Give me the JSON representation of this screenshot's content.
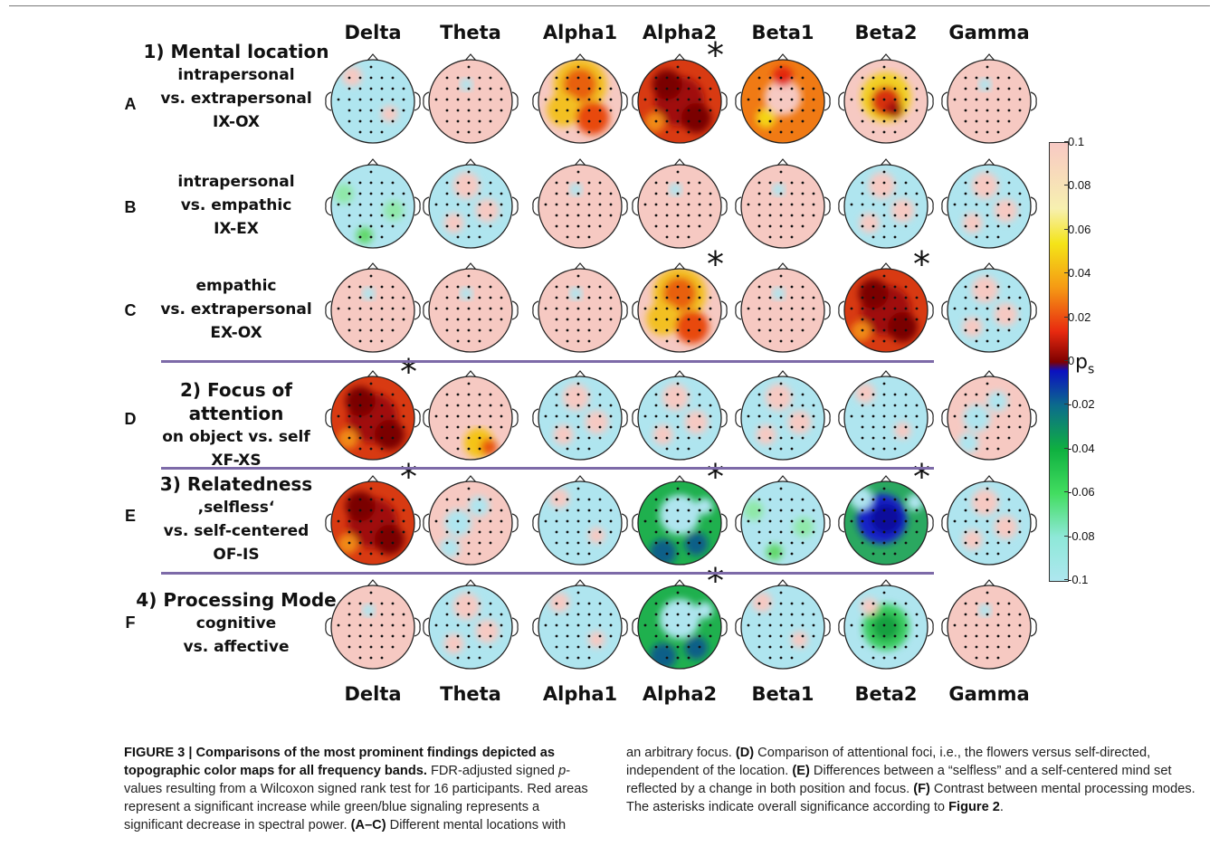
{
  "bands": [
    "Delta",
    "Theta",
    "Alpha1",
    "Alpha2",
    "Beta1",
    "Beta2",
    "Gamma"
  ],
  "rows": [
    {
      "letter": "A",
      "heading": "1) Mental location",
      "lines": [
        "intrapersonal",
        "vs. extrapersonal",
        "IX-OX"
      ],
      "asterisk_band": "Alpha2",
      "maps": [
        "blue",
        "pink",
        "hot-mid",
        "hot-strong",
        "hot-ring",
        "hot-center",
        "pink"
      ]
    },
    {
      "letter": "B",
      "heading": "",
      "lines": [
        "intrapersonal",
        "vs. empathic",
        "IX-EX"
      ],
      "asterisk_band": "",
      "maps": [
        "blue-green",
        "mixed-blue",
        "pink",
        "pink",
        "pink",
        "mixed-blue",
        "mixed-blue"
      ]
    },
    {
      "letter": "C",
      "heading": "",
      "lines": [
        "empathic",
        "vs. extrapersonal",
        "EX-OX"
      ],
      "asterisk_band": "Alpha2 Beta2",
      "maps": [
        "pink",
        "pink",
        "pink",
        "hot-mid",
        "pink",
        "hot-strong",
        "mixed-blue"
      ]
    },
    {
      "letter": "D",
      "heading": "2) Focus of attention",
      "lines": [
        "on object vs. self",
        "XF-XS"
      ],
      "asterisk_band": "Delta",
      "maps": [
        "hot-strong",
        "pink-hot",
        "mixed-blue",
        "mixed-blue",
        "mixed-blue",
        "blue",
        "mixed-pink"
      ]
    },
    {
      "letter": "E",
      "heading": "3) Relatedness",
      "lines": [
        ",selfless‘",
        "vs. self-centered",
        "OF-IS"
      ],
      "asterisk_band": "Delta Alpha2 Beta2",
      "maps": [
        "hot-strong",
        "mixed-pink",
        "blue",
        "green-ring",
        "blue-green",
        "blue-strong",
        "mixed-blue"
      ]
    },
    {
      "letter": "F",
      "heading": "4) Processing Mode",
      "lines": [
        "cognitive",
        "vs. affective"
      ],
      "asterisk_band": "Alpha2",
      "maps": [
        "pink",
        "mixed-blue",
        "blue",
        "green-ring",
        "blue",
        "green-center",
        "pink"
      ]
    }
  ],
  "colorbar": {
    "ticks": [
      "0.1",
      "0.08",
      "0.06",
      "0.04",
      "0.02",
      "0",
      "-0.02",
      "-0.04",
      "-0.06",
      "-0.08",
      "-0.1"
    ],
    "label": "p",
    "label_sub": "s"
  },
  "asterisk": "*",
  "caption": {
    "left": [
      {
        "b": "FIGURE 3 | Comparisons of the most prominent findings depicted as topographic color maps for all frequency bands."
      },
      {
        "t": " FDR-adjusted signed "
      },
      {
        "i": "p"
      },
      {
        "t": "-values resulting from a Wilcoxon signed rank test for 16 participants. Red areas represent a significant increase while green/blue signaling represents a significant decrease in spectral power. "
      },
      {
        "b": "(A–C)"
      },
      {
        "t": " Different mental locations with"
      }
    ],
    "right": [
      {
        "t": "an arbitrary focus. "
      },
      {
        "b": "(D)"
      },
      {
        "t": " Comparison of attentional foci, i.e., the flowers versus self-directed, independent of the location. "
      },
      {
        "b": "(E)"
      },
      {
        "t": " Differences between a “selfless” and a self-centered mind set reflected by a change in both position and focus. "
      },
      {
        "b": "(F)"
      },
      {
        "t": " Contrast between mental processing modes. The asterisks indicate overall significance according to "
      },
      {
        "b": "Figure 2"
      },
      {
        "t": "."
      }
    ]
  }
}
